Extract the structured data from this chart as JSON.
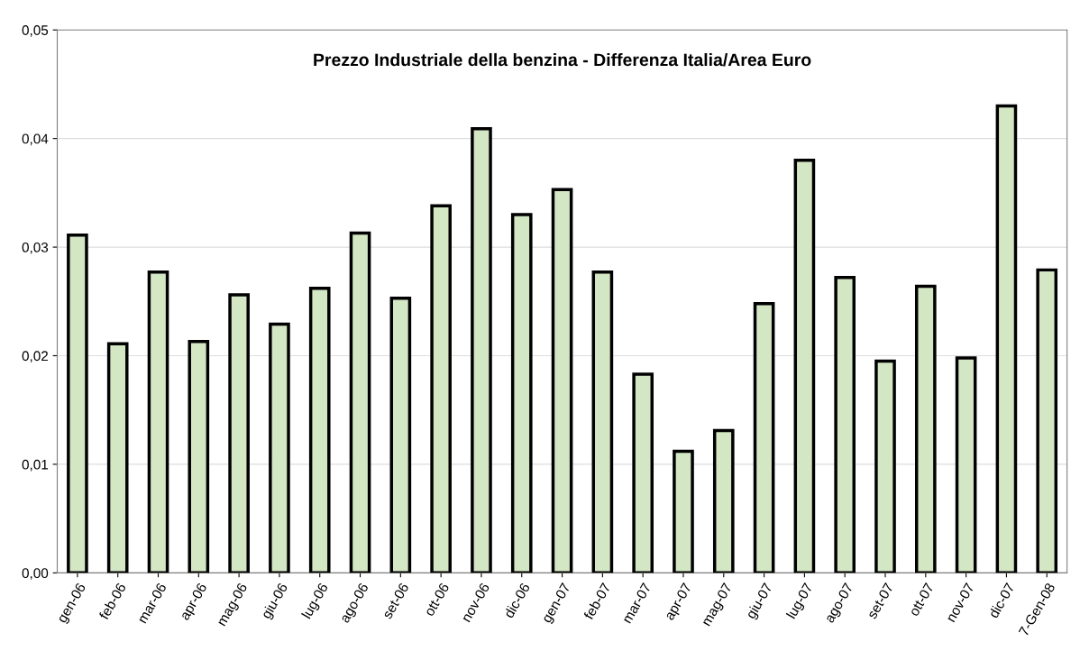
{
  "chart_data": {
    "type": "bar",
    "title": "Prezzo Industriale della benzina - Differenza Italia/Area Euro",
    "categories": [
      "gen-06",
      "feb-06",
      "mar-06",
      "apr-06",
      "mag-06",
      "giu-06",
      "lug-06",
      "ago-06",
      "set-06",
      "ott-06",
      "nov-06",
      "dic-06",
      "gen-07",
      "feb-07",
      "mar-07",
      "apr-07",
      "mag-07",
      "giu-07",
      "lug-07",
      "ago-07",
      "set-07",
      "ott-07",
      "nov-07",
      "dic-07",
      "7-Gen-08"
    ],
    "values": [
      0.0311,
      0.0211,
      0.0277,
      0.0213,
      0.0256,
      0.0229,
      0.0262,
      0.0313,
      0.0253,
      0.0338,
      0.0409,
      0.033,
      0.0353,
      0.0277,
      0.0183,
      0.0112,
      0.0131,
      0.0248,
      0.038,
      0.0272,
      0.0195,
      0.0264,
      0.0198,
      0.043,
      0.0279
    ],
    "color": "#d4e7c5",
    "ylim": [
      0,
      0.05
    ],
    "yticks": [
      {
        "value": 0,
        "label": "0,00"
      },
      {
        "value": 0.01,
        "label": "0,01"
      },
      {
        "value": 0.02,
        "label": "0,02"
      },
      {
        "value": 0.03,
        "label": "0,03"
      },
      {
        "value": 0.04,
        "label": "0,04"
      },
      {
        "value": 0.05,
        "label": "0,05"
      }
    ],
    "grid": "y"
  }
}
